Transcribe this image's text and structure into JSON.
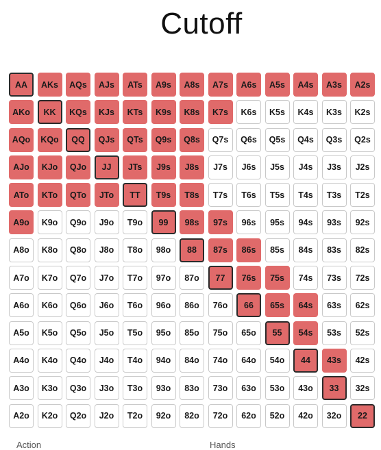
{
  "title": "Cutoff",
  "raise_color": "#e06a6a",
  "fold_color": "#ffffff",
  "footer": {
    "action_label": "Action",
    "hands_label": "Hands"
  },
  "grid": {
    "rows": [
      [
        "AA",
        "AKs",
        "AQs",
        "AJs",
        "ATs",
        "A9s",
        "A8s",
        "A7s",
        "A6s",
        "A5s",
        "A4s",
        "A3s",
        "A2s"
      ],
      [
        "AKo",
        "KK",
        "KQs",
        "KJs",
        "KTs",
        "K9s",
        "K8s",
        "K7s",
        "K6s",
        "K5s",
        "K4s",
        "K3s",
        "K2s"
      ],
      [
        "AQo",
        "KQo",
        "QQ",
        "QJs",
        "QTs",
        "Q9s",
        "Q8s",
        "Q7s",
        "Q6s",
        "Q5s",
        "Q4s",
        "Q3s",
        "Q2s"
      ],
      [
        "AJo",
        "KJo",
        "QJo",
        "JJ",
        "JTs",
        "J9s",
        "J8s",
        "J7s",
        "J6s",
        "J5s",
        "J4s",
        "J3s",
        "J2s"
      ],
      [
        "ATo",
        "KTo",
        "QTo",
        "JTo",
        "TT",
        "T9s",
        "T8s",
        "T7s",
        "T6s",
        "T5s",
        "T4s",
        "T3s",
        "T2s"
      ],
      [
        "A9o",
        "K9o",
        "Q9o",
        "J9o",
        "T9o",
        "99",
        "98s",
        "97s",
        "96s",
        "95s",
        "94s",
        "93s",
        "92s"
      ],
      [
        "A8o",
        "K8o",
        "Q8o",
        "J8o",
        "T8o",
        "98o",
        "88",
        "87s",
        "86s",
        "85s",
        "84s",
        "83s",
        "82s"
      ],
      [
        "A7o",
        "K7o",
        "Q7o",
        "J7o",
        "T7o",
        "97o",
        "87o",
        "77",
        "76s",
        "75s",
        "74s",
        "73s",
        "72s"
      ],
      [
        "A6o",
        "K6o",
        "Q6o",
        "J6o",
        "T6o",
        "96o",
        "86o",
        "76o",
        "66",
        "65s",
        "64s",
        "63s",
        "62s"
      ],
      [
        "A5o",
        "K5o",
        "Q5o",
        "J5o",
        "T5o",
        "95o",
        "85o",
        "75o",
        "65o",
        "55",
        "54s",
        "53s",
        "52s"
      ],
      [
        "A4o",
        "K4o",
        "Q4o",
        "J4o",
        "T4o",
        "94o",
        "84o",
        "74o",
        "64o",
        "54o",
        "44",
        "43s",
        "42s"
      ],
      [
        "A3o",
        "K3o",
        "Q3o",
        "J3o",
        "T3o",
        "93o",
        "83o",
        "73o",
        "63o",
        "53o",
        "43o",
        "33",
        "32s"
      ],
      [
        "A2o",
        "K2o",
        "Q2o",
        "J2o",
        "T2o",
        "92o",
        "82o",
        "72o",
        "62o",
        "52o",
        "42o",
        "32o",
        "22"
      ]
    ],
    "raise_hands": [
      "AA",
      "AKs",
      "AQs",
      "AJs",
      "ATs",
      "A9s",
      "A8s",
      "A7s",
      "A6s",
      "A5s",
      "A4s",
      "A3s",
      "A2s",
      "AKo",
      "KK",
      "KQs",
      "KJs",
      "KTs",
      "K9s",
      "K8s",
      "K7s",
      "AQo",
      "KQo",
      "QQ",
      "QJs",
      "QTs",
      "Q9s",
      "Q8s",
      "AJo",
      "KJo",
      "QJo",
      "JJ",
      "JTs",
      "J9s",
      "J8s",
      "ATo",
      "KTo",
      "QTo",
      "JTo",
      "TT",
      "T9s",
      "T8s",
      "A9o",
      "99",
      "98s",
      "97s",
      "88",
      "87s",
      "86s",
      "77",
      "76s",
      "75s",
      "66",
      "65s",
      "64s",
      "55",
      "54s",
      "44",
      "43s",
      "33",
      "22"
    ]
  }
}
